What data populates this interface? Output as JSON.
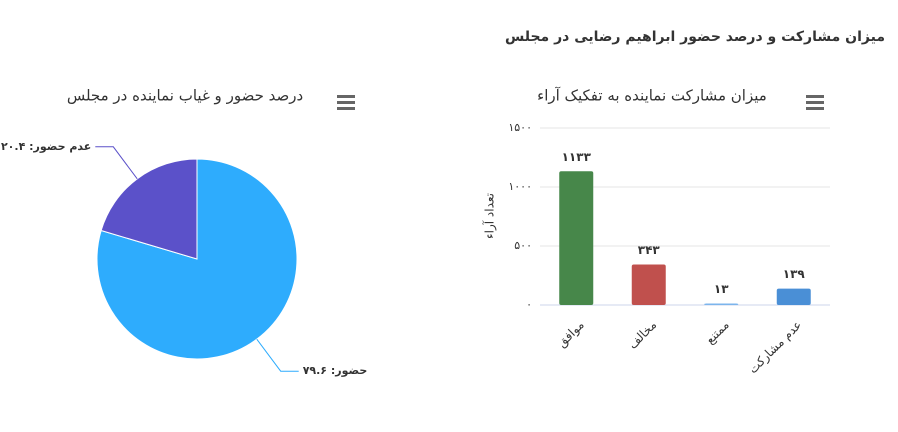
{
  "title": "میزان مشارکت و درصد حضور ابراهیم رضایی در مجلس",
  "chart_data": [
    {
      "type": "bar",
      "title": "میزان مشارکت نماینده به تفکیک آراء",
      "y_label": "تعداد آراء",
      "categories": [
        "موافق",
        "مخالف",
        "ممتنع",
        "عدم مشارکت"
      ],
      "values": [
        1133,
        343,
        13,
        139
      ],
      "value_labels": [
        "۱۱۳۳",
        "۳۴۳",
        "۱۳",
        "۱۳۹"
      ],
      "colors": [
        "#47874a",
        "#c0504d",
        "#7cb5ec",
        "#4a8fd6"
      ],
      "ylim": [
        0,
        1500
      ],
      "yticks": [
        {
          "value": 0,
          "label": "۰"
        },
        {
          "value": 500,
          "label": "۵۰۰"
        },
        {
          "value": 1000,
          "label": "۱۰۰۰"
        },
        {
          "value": 1500,
          "label": "۱۵۰۰"
        }
      ],
      "grid": true
    },
    {
      "type": "pie",
      "title": "درصد حضور و غیاب نماینده در مجلس",
      "categories": [
        "حضور",
        "عدم حضور"
      ],
      "values": [
        79.6,
        20.4
      ],
      "value_labels": [
        "حضور: ۷۹.۶",
        "عدم حضور: ۲۰.۴"
      ],
      "colors": [
        "#2eacfd",
        "#5b51c9"
      ]
    }
  ]
}
